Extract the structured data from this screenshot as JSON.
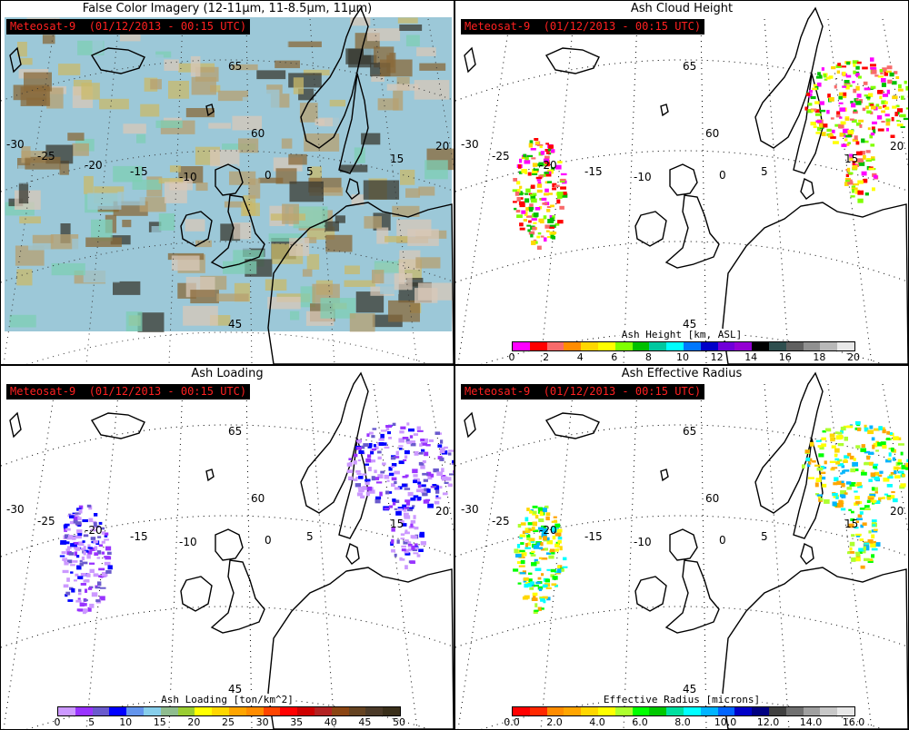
{
  "satellite_label": "Meteosat-9  (01/12/2013 - 00:15 UTC)",
  "lat_labels": [
    "65",
    "60",
    "45"
  ],
  "lon_labels": [
    "-30",
    "-25",
    "-20",
    "-15",
    "-10",
    "0",
    "5",
    "15",
    "20"
  ],
  "chart_data": [
    {
      "type": "heatmap",
      "title": "False Color Imagery (12-11μm, 11-8.5μm, 11μm)",
      "colorbar": null,
      "scene_colors": [
        "#c9b96a",
        "#7ecfb4",
        "#9cc8d8",
        "#8a6a3a",
        "#b7a070",
        "#d8c8b8",
        "#3a3a30"
      ]
    },
    {
      "type": "heatmap",
      "title": "Ash Cloud Height",
      "colorbar": {
        "label": "Ash Height [km, ASL]",
        "range": [
          0,
          20
        ],
        "tick_labels": [
          "0",
          "2",
          "4",
          "6",
          "8",
          "10",
          "12",
          "14",
          "16",
          "18",
          "20"
        ],
        "colors": [
          "#ff00ff",
          "#ff0000",
          "#f86a6a",
          "#ff8c00",
          "#ffd700",
          "#ffff00",
          "#7fff00",
          "#00c000",
          "#00c8a0",
          "#00ffff",
          "#0078ff",
          "#0000c8",
          "#7000d8",
          "#9400d3",
          "#000000",
          "#2f4f4f",
          "#606060",
          "#909090",
          "#b8b8b8",
          "#e8e8e8"
        ]
      }
    },
    {
      "type": "heatmap",
      "title": "Ash Loading",
      "colorbar": {
        "label": "Ash Loading [ton/km^2]",
        "range": [
          0,
          50
        ],
        "tick_labels": [
          "0",
          "5",
          "10",
          "15",
          "20",
          "25",
          "30",
          "35",
          "40",
          "45",
          "50"
        ],
        "colors": [
          "#cc99ff",
          "#9933ff",
          "#6a5acd",
          "#0000ff",
          "#6495ed",
          "#87ceeb",
          "#8fbc8f",
          "#9acd32",
          "#ffff00",
          "#ffd700",
          "#ffa500",
          "#ff8c00",
          "#ff4500",
          "#ff0000",
          "#cd0000",
          "#b22222",
          "#8b4513",
          "#654321",
          "#4b3a28",
          "#3a2f1a"
        ]
      }
    },
    {
      "type": "heatmap",
      "title": "Ash Effective Radius",
      "colorbar": {
        "label": "Effective Radius [microns]",
        "range": [
          0.0,
          16.0
        ],
        "tick_labels": [
          "0.0",
          "2.0",
          "4.0",
          "6.0",
          "8.0",
          "10.0",
          "12.0",
          "14.0",
          "16.0"
        ],
        "colors": [
          "#ff0000",
          "#ff2800",
          "#ff8c00",
          "#ffa500",
          "#ffd700",
          "#ffff00",
          "#adff2f",
          "#00ff00",
          "#00c800",
          "#00e0a0",
          "#00ffff",
          "#00b4ff",
          "#0064ff",
          "#0000c8",
          "#000080",
          "#404040",
          "#707070",
          "#a0a0a0",
          "#c8c8c8",
          "#e8e8e8"
        ]
      }
    }
  ]
}
